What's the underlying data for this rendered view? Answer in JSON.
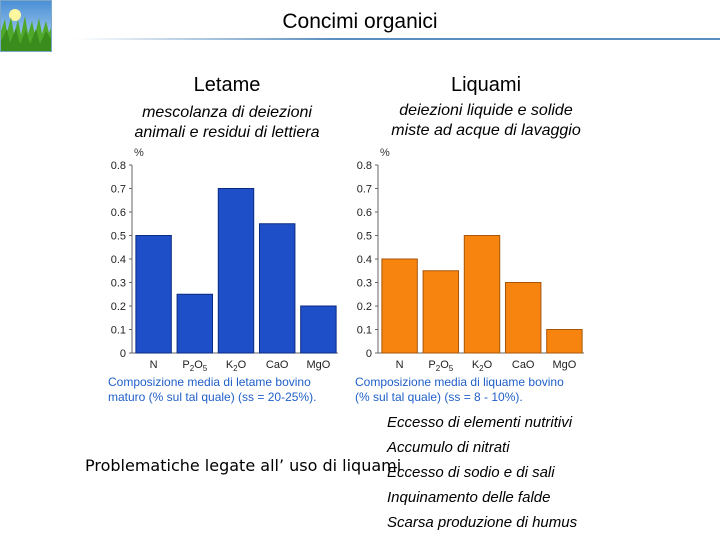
{
  "title": "Concimi organici",
  "columns": [
    {
      "heading": "Letame",
      "description_lines": [
        "mescolanza di deiezioni",
        "animali e residui di lettiera"
      ]
    },
    {
      "heading": "Liquami",
      "description_lines": [
        "deiezioni liquide e solide",
        "miste ad acque di lavaggio"
      ]
    }
  ],
  "chart_data": [
    {
      "type": "bar",
      "y_unit": "%",
      "categories": [
        "N",
        "P2O5",
        "K2O",
        "CaO",
        "MgO"
      ],
      "values": [
        0.5,
        0.25,
        0.7,
        0.55,
        0.2
      ],
      "ylim": [
        0,
        0.8
      ],
      "yticks": [
        "0",
        "0.1",
        "0.2",
        "0.3",
        "0.4",
        "0.5",
        "0.6",
        "0.7",
        "0.8"
      ],
      "caption_lines": [
        "Composizione media di letame bovino",
        "maturo (% sul tal quale) (ss = 20-25%)."
      ],
      "bar_color": "#1f4fc8",
      "bar_edge": "#0a2a80"
    },
    {
      "type": "bar",
      "y_unit": "%",
      "categories": [
        "N",
        "P2O5",
        "K2O",
        "CaO",
        "MgO"
      ],
      "values": [
        0.4,
        0.35,
        0.5,
        0.3,
        0.1
      ],
      "ylim": [
        0,
        0.8
      ],
      "yticks": [
        "0",
        "0.1",
        "0.2",
        "0.3",
        "0.4",
        "0.5",
        "0.6",
        "0.7",
        "0.8"
      ],
      "caption_lines": [
        "Composizione media di liquame bovino",
        "(% sul tal quale) (ss = 8 - 10%)."
      ],
      "bar_color": "#f7840f",
      "bar_edge": "#a8560a"
    }
  ],
  "problems_label": "Problematiche legate all’ uso di liquami",
  "issues": [
    "Eccesso di elementi nutritivi",
    "Accumulo di nitrati",
    "Eccesso di sodio e di sali",
    "Inquinamento delle falde",
    "Scarsa produzione di humus"
  ]
}
